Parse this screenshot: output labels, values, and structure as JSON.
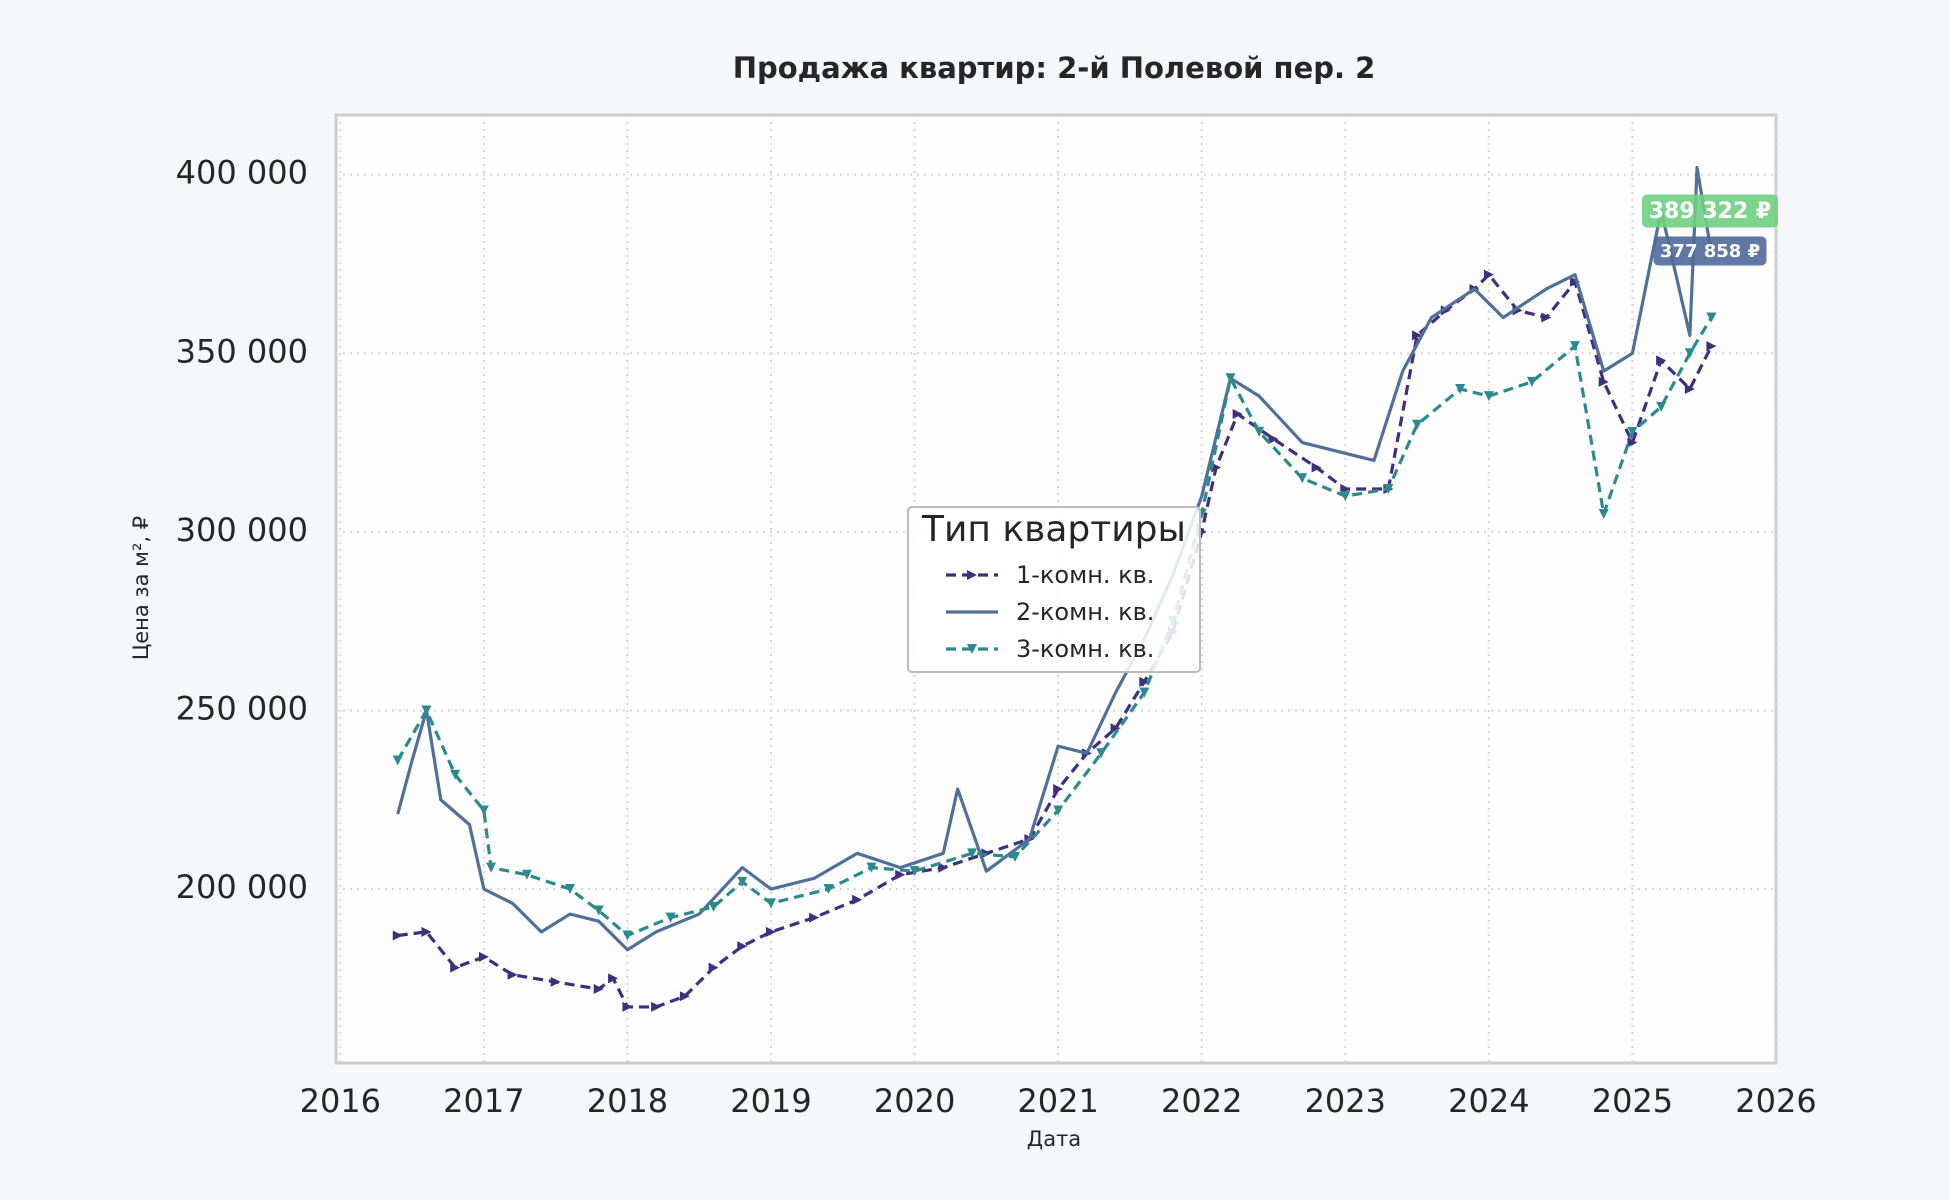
{
  "chart_data": {
    "type": "line",
    "title": "Продажа квартир: 2-й Полевой пер. 2",
    "x_label": "Дата",
    "y_label": "Цена за м², ₽",
    "xlim": [
      2015.97,
      2026
    ],
    "xticks": [
      2016,
      2017,
      2018,
      2019,
      2020,
      2021,
      2022,
      2023,
      2024,
      2025,
      2026
    ],
    "ylim": [
      151300,
      416700
    ],
    "yticks": [
      {
        "value": 200000,
        "label": "200 000"
      },
      {
        "value": 250000,
        "label": "250 000"
      },
      {
        "value": 300000,
        "label": "300 000"
      },
      {
        "value": 350000,
        "label": "350 000"
      },
      {
        "value": 400000,
        "label": "400 000"
      }
    ],
    "grid": true,
    "legend_title": "Тип квартиры",
    "legend_position": "center",
    "series": [
      {
        "name": "1-комн. кв.",
        "color": "#3f2f7c",
        "line_style": "dashed",
        "marker": "triangle-right",
        "x": [
          2016.4,
          2016.6,
          2016.8,
          2017.0,
          2017.2,
          2017.5,
          2017.8,
          2017.9,
          2018.0,
          2018.2,
          2018.4,
          2018.6,
          2018.8,
          2019.0,
          2019.3,
          2019.6,
          2019.9,
          2020.2,
          2020.5,
          2020.8,
          2021.0,
          2021.2,
          2021.4,
          2021.6,
          2021.8,
          2022.0,
          2022.1,
          2022.25,
          2022.5,
          2022.8,
          2023.0,
          2023.3,
          2023.5,
          2023.7,
          2023.9,
          2024.0,
          2024.2,
          2024.4,
          2024.6,
          2024.8,
          2025.0,
          2025.2,
          2025.4,
          2025.55
        ],
        "values": [
          187000,
          188000,
          178000,
          181000,
          176000,
          174000,
          172000,
          175000,
          167000,
          167000,
          170000,
          178000,
          184000,
          188000,
          192000,
          197000,
          204000,
          206000,
          210000,
          214000,
          228000,
          238000,
          245000,
          258000,
          272000,
          300000,
          318000,
          333000,
          326000,
          318000,
          312000,
          312000,
          355000,
          362000,
          368000,
          372000,
          362000,
          360000,
          370000,
          342000,
          325000,
          348000,
          340000,
          352000
        ]
      },
      {
        "name": "2-комн. кв.",
        "color": "#50709a",
        "line_style": "solid",
        "marker": null,
        "x": [
          2016.4,
          2016.5,
          2016.6,
          2016.7,
          2016.9,
          2017.0,
          2017.2,
          2017.4,
          2017.6,
          2017.8,
          2018.0,
          2018.2,
          2018.5,
          2018.8,
          2019.0,
          2019.3,
          2019.6,
          2019.9,
          2020.2,
          2020.3,
          2020.5,
          2020.8,
          2021.0,
          2021.2,
          2021.4,
          2021.6,
          2021.8,
          2022.0,
          2022.2,
          2022.4,
          2022.7,
          2023.0,
          2023.2,
          2023.4,
          2023.6,
          2023.9,
          2024.1,
          2024.4,
          2024.6,
          2024.8,
          2025.0,
          2025.2,
          2025.4,
          2025.45,
          2025.55
        ],
        "values": [
          221000,
          236000,
          250000,
          225000,
          218000,
          200000,
          196000,
          188000,
          193000,
          191000,
          183000,
          188000,
          193000,
          206000,
          200000,
          203000,
          210000,
          206000,
          210000,
          228000,
          205000,
          214000,
          240000,
          238000,
          255000,
          270000,
          288000,
          310000,
          343000,
          338000,
          325000,
          322000,
          320000,
          345000,
          360000,
          368000,
          360000,
          368000,
          372000,
          345000,
          350000,
          390000,
          355000,
          402000,
          378000
        ]
      },
      {
        "name": "3-комн. кв.",
        "color": "#2b8a8c",
        "line_style": "dashed",
        "marker": "triangle-down",
        "x": [
          2016.4,
          2016.6,
          2016.8,
          2017.0,
          2017.05,
          2017.3,
          2017.6,
          2017.8,
          2018.0,
          2018.3,
          2018.6,
          2018.8,
          2019.0,
          2019.4,
          2019.7,
          2020.0,
          2020.4,
          2020.7,
          2021.0,
          2021.3,
          2021.6,
          2021.8,
          2022.0,
          2022.2,
          2022.4,
          2022.7,
          2023.0,
          2023.3,
          2023.5,
          2023.8,
          2024.0,
          2024.3,
          2024.6,
          2024.8,
          2025.0,
          2025.2,
          2025.4,
          2025.55
        ],
        "values": [
          236000,
          250000,
          232000,
          222000,
          206000,
          204000,
          200000,
          194000,
          187000,
          192000,
          195000,
          202000,
          196000,
          200000,
          206000,
          205000,
          210000,
          209000,
          222000,
          238000,
          255000,
          275000,
          305000,
          343000,
          328000,
          315000,
          310000,
          312000,
          330000,
          340000,
          338000,
          342000,
          352000,
          305000,
          328000,
          335000,
          350000,
          360000
        ]
      }
    ],
    "annotations": [
      {
        "text": "389 322 ₽",
        "color": "#6fcf7f"
      },
      {
        "text": "377 858 ₽",
        "color": "#50689a"
      }
    ]
  }
}
